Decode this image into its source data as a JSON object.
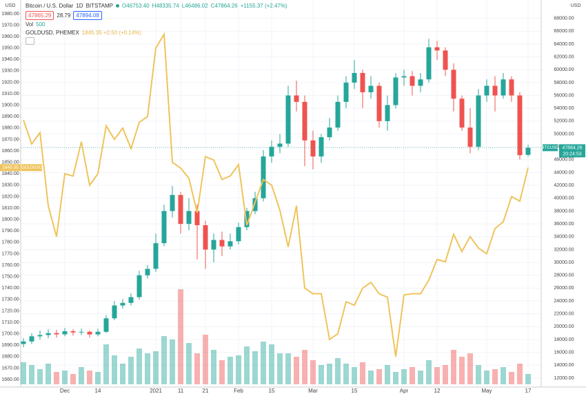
{
  "header": {
    "symbol": "Bitcoin / U.S. Dollar",
    "interval": "1D",
    "exchange": "BITSTAMP",
    "ohlc": [
      "O46753.40",
      "H48335.74",
      "L46486.02",
      "C47864.26",
      "+1155.37 (+2.47%)"
    ],
    "bid": "47865.29",
    "spread": "28.79",
    "ask": "47894.08",
    "volume_label": "Vol",
    "volume_value": "500",
    "overlay": "GOLDUSD, PHEMEX",
    "overlay_values": "1845.35 +2.50 (+0.14%)",
    "left_unit": "USD",
    "right_unit": "USD",
    "btc_tag": "BTCUSD",
    "price_tag": "47864.26",
    "countdown": "20:24:53",
    "gold_tag": "GOLDUSD",
    "gold_price": "1845.35"
  },
  "chart_data": {
    "type": "candlestick",
    "categories": [
      null,
      null,
      null,
      null,
      null,
      "Dec",
      null,
      null,
      null,
      "14",
      null,
      null,
      null,
      null,
      null,
      null,
      "2021",
      null,
      null,
      "11",
      null,
      null,
      "21",
      null,
      null,
      null,
      "Feb",
      null,
      null,
      null,
      "15",
      null,
      null,
      null,
      null,
      "Mar",
      null,
      null,
      null,
      null,
      "15",
      null,
      null,
      null,
      null,
      null,
      "Apr",
      null,
      null,
      null,
      "12",
      null,
      null,
      null,
      null,
      null,
      "May",
      null,
      null,
      null,
      null,
      "17"
    ],
    "series": [
      {
        "name": "Bitcoin / U.S. Dollar",
        "axis": "y2",
        "up_color": "#26a69a",
        "down_color": "#ef5350",
        "open": [
          17300,
          17700,
          18500,
          18700,
          19000,
          18800,
          19300,
          19100,
          19200,
          18800,
          19200,
          21300,
          23300,
          23700,
          24600,
          28000,
          29000,
          33000,
          38000,
          40500,
          36000,
          38000,
          35800,
          32000,
          33500,
          32500,
          33300,
          35500,
          38000,
          40000,
          46500,
          48000,
          48500,
          56000,
          55000,
          49000,
          46500,
          49500,
          51000,
          55000,
          58000,
          59500,
          56500,
          57500,
          52000,
          54500,
          58800,
          59000,
          57500,
          58500,
          63500,
          63000,
          60000,
          55500,
          51000,
          48000,
          56000,
          57500,
          56000,
          58500,
          56000,
          46753.4
        ],
        "high": [
          18200,
          19000,
          19400,
          19600,
          19500,
          19800,
          19600,
          19700,
          19400,
          19700,
          21800,
          24000,
          24300,
          25200,
          28700,
          29600,
          34500,
          39000,
          41900,
          41000,
          40000,
          39000,
          36500,
          34500,
          34800,
          34500,
          36200,
          38500,
          41000,
          47500,
          49000,
          50000,
          57500,
          58300,
          56000,
          50500,
          50000,
          52500,
          56000,
          59000,
          61500,
          60000,
          59000,
          58000,
          56000,
          59500,
          60000,
          59800,
          59500,
          64800,
          64500,
          63500,
          61000,
          56000,
          54000,
          57000,
          58500,
          59000,
          59500,
          59000,
          56500,
          48335.74
        ],
        "low": [
          16800,
          17300,
          18000,
          18200,
          18300,
          18500,
          18600,
          18700,
          18300,
          18500,
          19000,
          21000,
          22800,
          23300,
          24200,
          27500,
          28500,
          32500,
          37000,
          34500,
          35000,
          30500,
          29000,
          30000,
          31000,
          32000,
          32800,
          35000,
          37500,
          39500,
          45500,
          47000,
          48000,
          53500,
          45000,
          44500,
          45500,
          49000,
          50500,
          54000,
          57000,
          54000,
          55500,
          51000,
          50500,
          54000,
          57500,
          56000,
          56500,
          58000,
          61500,
          59000,
          53500,
          50500,
          47000,
          47500,
          55000,
          53500,
          55500,
          55000,
          46000,
          46486.02
        ],
        "close": [
          17700,
          18500,
          18700,
          19000,
          18800,
          19300,
          19100,
          19200,
          18800,
          19200,
          21300,
          23300,
          23700,
          24600,
          28000,
          29000,
          33000,
          38000,
          40500,
          36000,
          38000,
          35800,
          32000,
          33500,
          32500,
          33300,
          35500,
          38000,
          40000,
          46500,
          48000,
          48500,
          56000,
          55000,
          49000,
          46500,
          49500,
          51000,
          55000,
          58000,
          59500,
          56500,
          57500,
          52000,
          54500,
          58800,
          59000,
          57500,
          58500,
          63500,
          63000,
          60000,
          55500,
          51000,
          48000,
          56000,
          57500,
          56000,
          58500,
          56000,
          46700,
          47864.26
        ]
      },
      {
        "name": "GOLDUSD",
        "type": "line",
        "axis": "y",
        "color": "#f0c35a",
        "values": [
          1887,
          1866,
          1876,
          1812,
          1785,
          1840,
          1838,
          1868,
          1830,
          1840,
          1882,
          1870,
          1880,
          1862,
          1885,
          1890,
          1950,
          1962,
          1850,
          1845,
          1836,
          1806,
          1855,
          1852,
          1835,
          1838,
          1848,
          1795,
          1815,
          1835,
          1830,
          1808,
          1776,
          1812,
          1740,
          1735,
          1735,
          1695,
          1700,
          1728,
          1725,
          1740,
          1745,
          1735,
          1732,
          1680,
          1734,
          1735,
          1735,
          1747,
          1765,
          1763,
          1787,
          1772,
          1785,
          1775,
          1770,
          1792,
          1798,
          1820,
          1816,
          1845.35
        ]
      }
    ],
    "volume": [
      32,
      28,
      22,
      30,
      18,
      20,
      15,
      25,
      20,
      18,
      58,
      42,
      30,
      40,
      52,
      45,
      48,
      70,
      65,
      138,
      60,
      45,
      72,
      50,
      35,
      40,
      42,
      55,
      48,
      62,
      58,
      45,
      45,
      40,
      50,
      35,
      28,
      30,
      38,
      30,
      25,
      32,
      20,
      22,
      28,
      18,
      22,
      25,
      20,
      35,
      25,
      28,
      50,
      40,
      45,
      28,
      20,
      22,
      25,
      18,
      30,
      15
    ],
    "ylim": [
      1653.4,
      1992
    ],
    "yticks": [
      {
        "value": 1660,
        "label": "1660.00"
      },
      {
        "value": 1670,
        "label": "1670.00"
      },
      {
        "value": 1680,
        "label": "1680.00"
      },
      {
        "value": 1690,
        "label": "1690.00"
      },
      {
        "value": 1700,
        "label": "1700.00"
      },
      {
        "value": 1710,
        "label": "1710.00"
      },
      {
        "value": 1720,
        "label": "1720.00"
      },
      {
        "value": 1730,
        "label": "1730.00"
      },
      {
        "value": 1740,
        "label": "1740.00"
      },
      {
        "value": 1750,
        "label": "1750.00"
      },
      {
        "value": 1760,
        "label": "1760.00"
      },
      {
        "value": 1770,
        "label": "1770.00"
      },
      {
        "value": 1780,
        "label": "1780.00"
      },
      {
        "value": 1790,
        "label": "1790.00"
      },
      {
        "value": 1800,
        "label": "1800.00"
      },
      {
        "value": 1810,
        "label": "1810.00"
      },
      {
        "value": 1820,
        "label": "1820.00"
      },
      {
        "value": 1830,
        "label": "1830.00"
      },
      {
        "value": 1840,
        "label": "1840.00"
      },
      {
        "value": 1850,
        "label": "1850.00"
      },
      {
        "value": 1860,
        "label": "1860.00"
      },
      {
        "value": 1870,
        "label": "1870.00"
      },
      {
        "value": 1880,
        "label": "1880.00"
      },
      {
        "value": 1890,
        "label": "1890.00"
      },
      {
        "value": 1900,
        "label": "1900.00"
      },
      {
        "value": 1910,
        "label": "1910.00"
      },
      {
        "value": 1920,
        "label": "1920.00"
      },
      {
        "value": 1930,
        "label": "1930.00"
      },
      {
        "value": 1940,
        "label": "1940.00"
      },
      {
        "value": 1950,
        "label": "1950.00"
      },
      {
        "value": 1960,
        "label": "1960.00"
      },
      {
        "value": 1970,
        "label": "1970.00"
      },
      {
        "value": 1980,
        "label": "1980.00"
      }
    ],
    "y2lim": [
      10600,
      70860
    ],
    "y2ticks": [
      {
        "value": 12000,
        "label": "12000.00"
      },
      {
        "value": 14000,
        "label": "14000.00"
      },
      {
        "value": 16000,
        "label": "16000.00"
      },
      {
        "value": 18000,
        "label": "18000.00"
      },
      {
        "value": 20000,
        "label": "20000.00"
      },
      {
        "value": 22000,
        "label": "22000.00"
      },
      {
        "value": 24000,
        "label": "24000.00"
      },
      {
        "value": 26000,
        "label": "26000.00"
      },
      {
        "value": 28000,
        "label": "28000.00"
      },
      {
        "value": 30000,
        "label": "30000.00"
      },
      {
        "value": 32000,
        "label": "32000.00"
      },
      {
        "value": 34000,
        "label": "34000.00"
      },
      {
        "value": 36000,
        "label": "36000.00"
      },
      {
        "value": 38000,
        "label": "38000.00"
      },
      {
        "value": 40000,
        "label": "40000.00"
      },
      {
        "value": 42000,
        "label": "42000.00"
      },
      {
        "value": 44000,
        "label": "44000.00"
      },
      {
        "value": 46000,
        "label": "46000.00"
      },
      {
        "value": 48000,
        "label": "48000.00"
      },
      {
        "value": 50000,
        "label": "50000.00"
      },
      {
        "value": 52000,
        "label": "52000.00"
      },
      {
        "value": 54000,
        "label": "54000.00"
      },
      {
        "value": 56000,
        "label": "56000.00"
      },
      {
        "value": 58000,
        "label": "58000.00"
      },
      {
        "value": 60000,
        "label": "60000.00"
      },
      {
        "value": 62000,
        "label": "62000.00"
      },
      {
        "value": 64000,
        "label": "64000.00"
      },
      {
        "value": 66000,
        "label": "66000.00"
      },
      {
        "value": 68000,
        "label": "68000.00"
      }
    ],
    "grid": true
  }
}
